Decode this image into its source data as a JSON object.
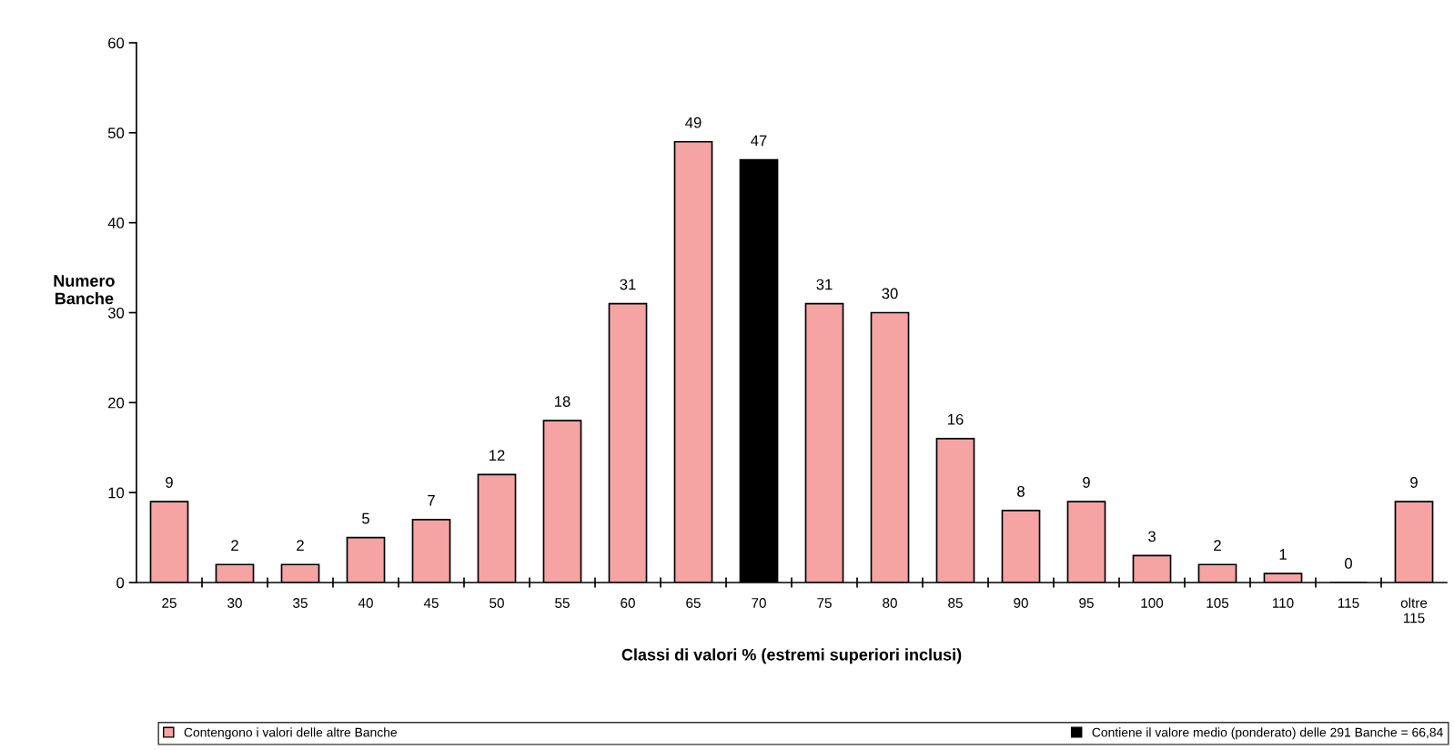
{
  "chart_data": {
    "type": "bar",
    "xlabel": "Classi di valori % (estremi superiori inclusi)",
    "ylabel": "Numero\nBanche",
    "categories": [
      "25",
      "30",
      "35",
      "40",
      "45",
      "50",
      "55",
      "60",
      "65",
      "70",
      "75",
      "80",
      "85",
      "90",
      "95",
      "100",
      "105",
      "110",
      "115",
      "oltre\n115"
    ],
    "series": [
      {
        "name": "Contengono i valori delle altre Banche",
        "color": "#f5a3a3",
        "values": [
          9,
          2,
          2,
          5,
          7,
          12,
          18,
          31,
          49,
          null,
          31,
          30,
          16,
          8,
          9,
          3,
          2,
          1,
          0,
          9
        ]
      },
      {
        "name": "Contiene il valore medio (ponderato) delle 291 Banche = 66,84",
        "color": "#000000",
        "values": [
          null,
          null,
          null,
          null,
          null,
          null,
          null,
          null,
          null,
          47,
          null,
          null,
          null,
          null,
          null,
          null,
          null,
          null,
          null,
          null
        ]
      }
    ],
    "stacked": true,
    "ylim": [
      0,
      60
    ],
    "yticks": [
      0,
      10,
      20,
      30,
      40,
      50,
      60
    ],
    "data_labels": true,
    "legend": "bottom",
    "grid": false
  }
}
